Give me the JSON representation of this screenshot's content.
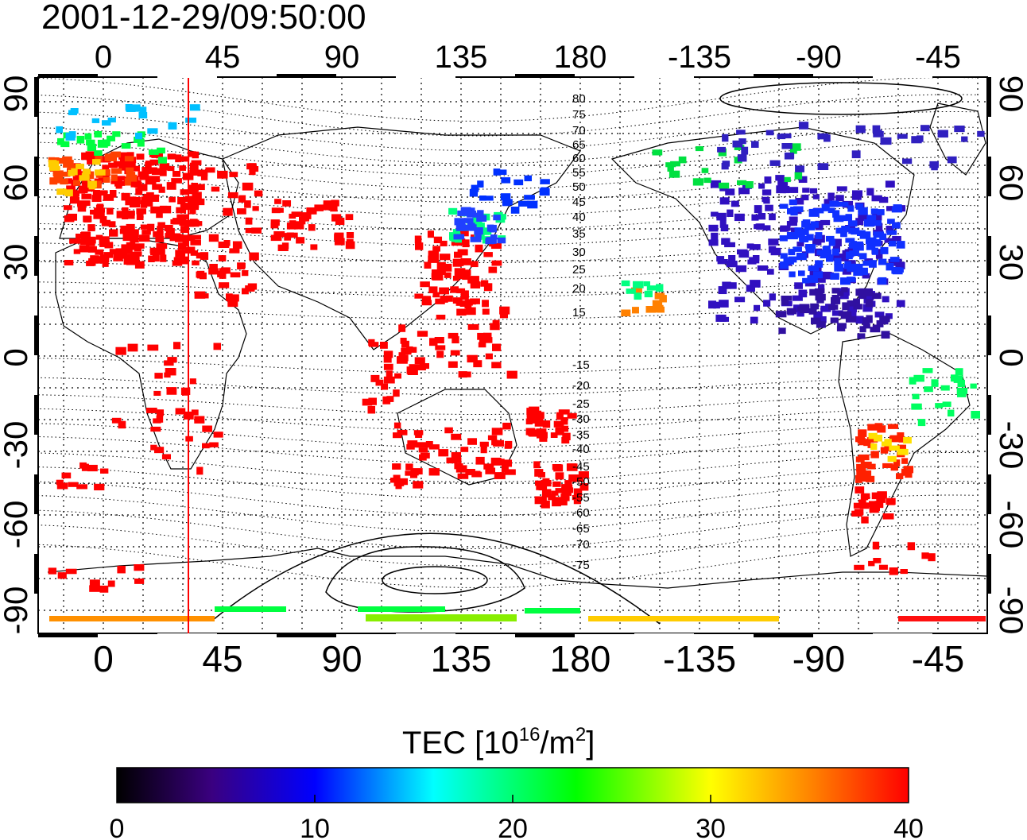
{
  "title": "2001-12-29/09:50:00",
  "map": {
    "lon_top_labels": [
      "0",
      "45",
      "90",
      "135",
      "180",
      "-135",
      "-90",
      "-45"
    ],
    "lon_bottom_labels": [
      "0",
      "45",
      "90",
      "135",
      "180",
      "-135",
      "-90",
      "-45"
    ],
    "lat_labels": [
      "90",
      "60",
      "30",
      "0",
      "-30",
      "-60",
      "-90"
    ],
    "lon_values": [
      0,
      45,
      90,
      135,
      180,
      -135,
      -90,
      -45
    ],
    "lat_values": [
      90,
      60,
      30,
      0,
      -30,
      -60,
      -90
    ],
    "contour_labels": [
      "80",
      "75",
      "70",
      "65",
      "60",
      "55",
      "50",
      "45",
      "40",
      "35",
      "30",
      "25",
      "20",
      "15",
      "-15",
      "-20",
      "-25",
      "-30",
      "-35",
      "-40",
      "-45",
      "-50",
      "-55",
      "-60",
      "-65",
      "-70",
      "-75"
    ],
    "terminator_line_longitude": 32,
    "terminator_color": "#ff0000"
  },
  "colorbar": {
    "label_main": "TEC  [10",
    "label_sup1": "16",
    "label_mid": "/m",
    "label_sup2": "2",
    "label_end": "]",
    "tick_labels": [
      "0",
      "10",
      "20",
      "30",
      "40"
    ],
    "min": 0,
    "max": 40,
    "colors": [
      "#000000",
      "#3a0080",
      "#0000ff",
      "#00ffff",
      "#00ff00",
      "#ffff00",
      "#ff8000",
      "#ff0000"
    ]
  }
}
